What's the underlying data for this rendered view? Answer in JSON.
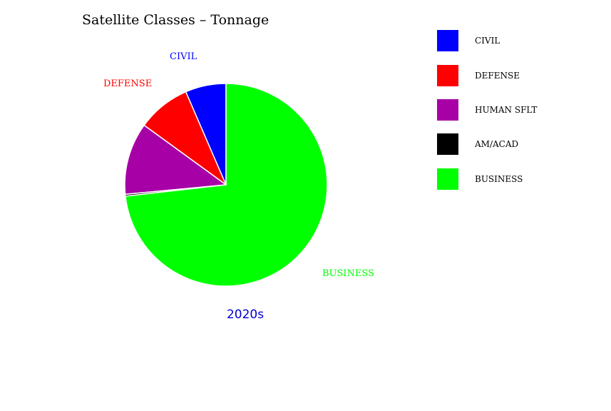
{
  "chart_data": {
    "type": "pie",
    "title": "Satellite Classes – Tonnage",
    "subtitle": "2020s",
    "subtitle_color": "#0000cc",
    "labels": [
      "CIVIL",
      "DEFENSE",
      "HUMAN SFLT",
      "AM/ACAD",
      "BUSINESS"
    ],
    "values": [
      6.5,
      8.5,
      11.5,
      0.3,
      73.2
    ],
    "units": "percent (approx.)",
    "colors": [
      "#0000ff",
      "#ff0000",
      "#a600a6",
      "#000000",
      "#00ff00"
    ],
    "slice_labels_shown": [
      "CIVIL",
      "DEFENSE",
      "BUSINESS"
    ],
    "legend_position": "right",
    "legend": [
      "CIVIL",
      "DEFENSE",
      "HUMAN SFLT",
      "AM/ACAD",
      "BUSINESS"
    ]
  }
}
